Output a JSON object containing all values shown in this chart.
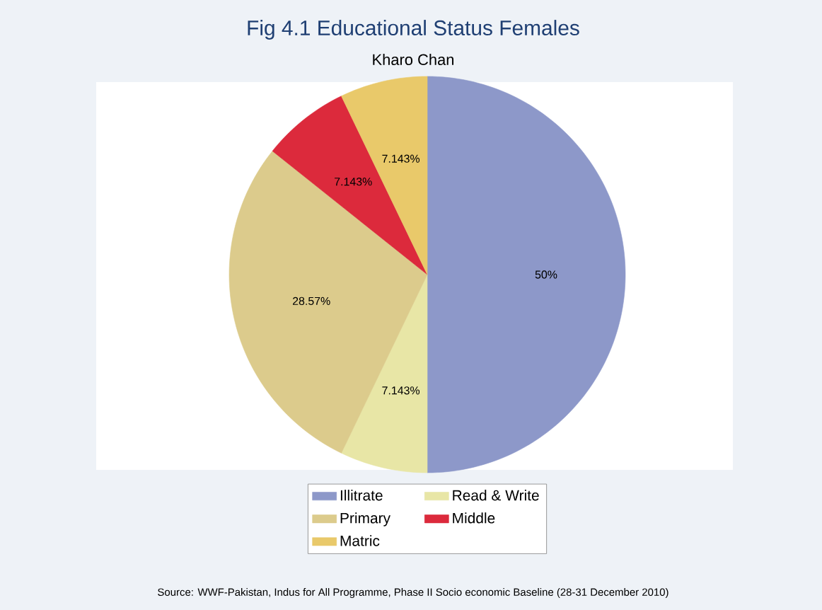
{
  "chart_data": {
    "type": "pie",
    "title": "Fig 4.1 Educational Status Females",
    "subtitle": "Kharo Chan",
    "categories": [
      "Illitrate",
      "Read & Write",
      "Primary",
      "Middle",
      "Matric"
    ],
    "values": [
      50,
      7.143,
      28.57,
      7.143,
      7.143
    ],
    "value_labels": [
      "50%",
      "7.143%",
      "28.57%",
      "7.143%",
      "7.143%"
    ],
    "colors": [
      "#8d98c9",
      "#e8e6a6",
      "#dccb8c",
      "#dc2a3c",
      "#e9c96a"
    ],
    "legend": "bottom",
    "annotations": [
      "Source: WWF-Pakistan, Indus for All Programme, Phase II Socio economic Baseline (28-31 December 2010)"
    ]
  }
}
